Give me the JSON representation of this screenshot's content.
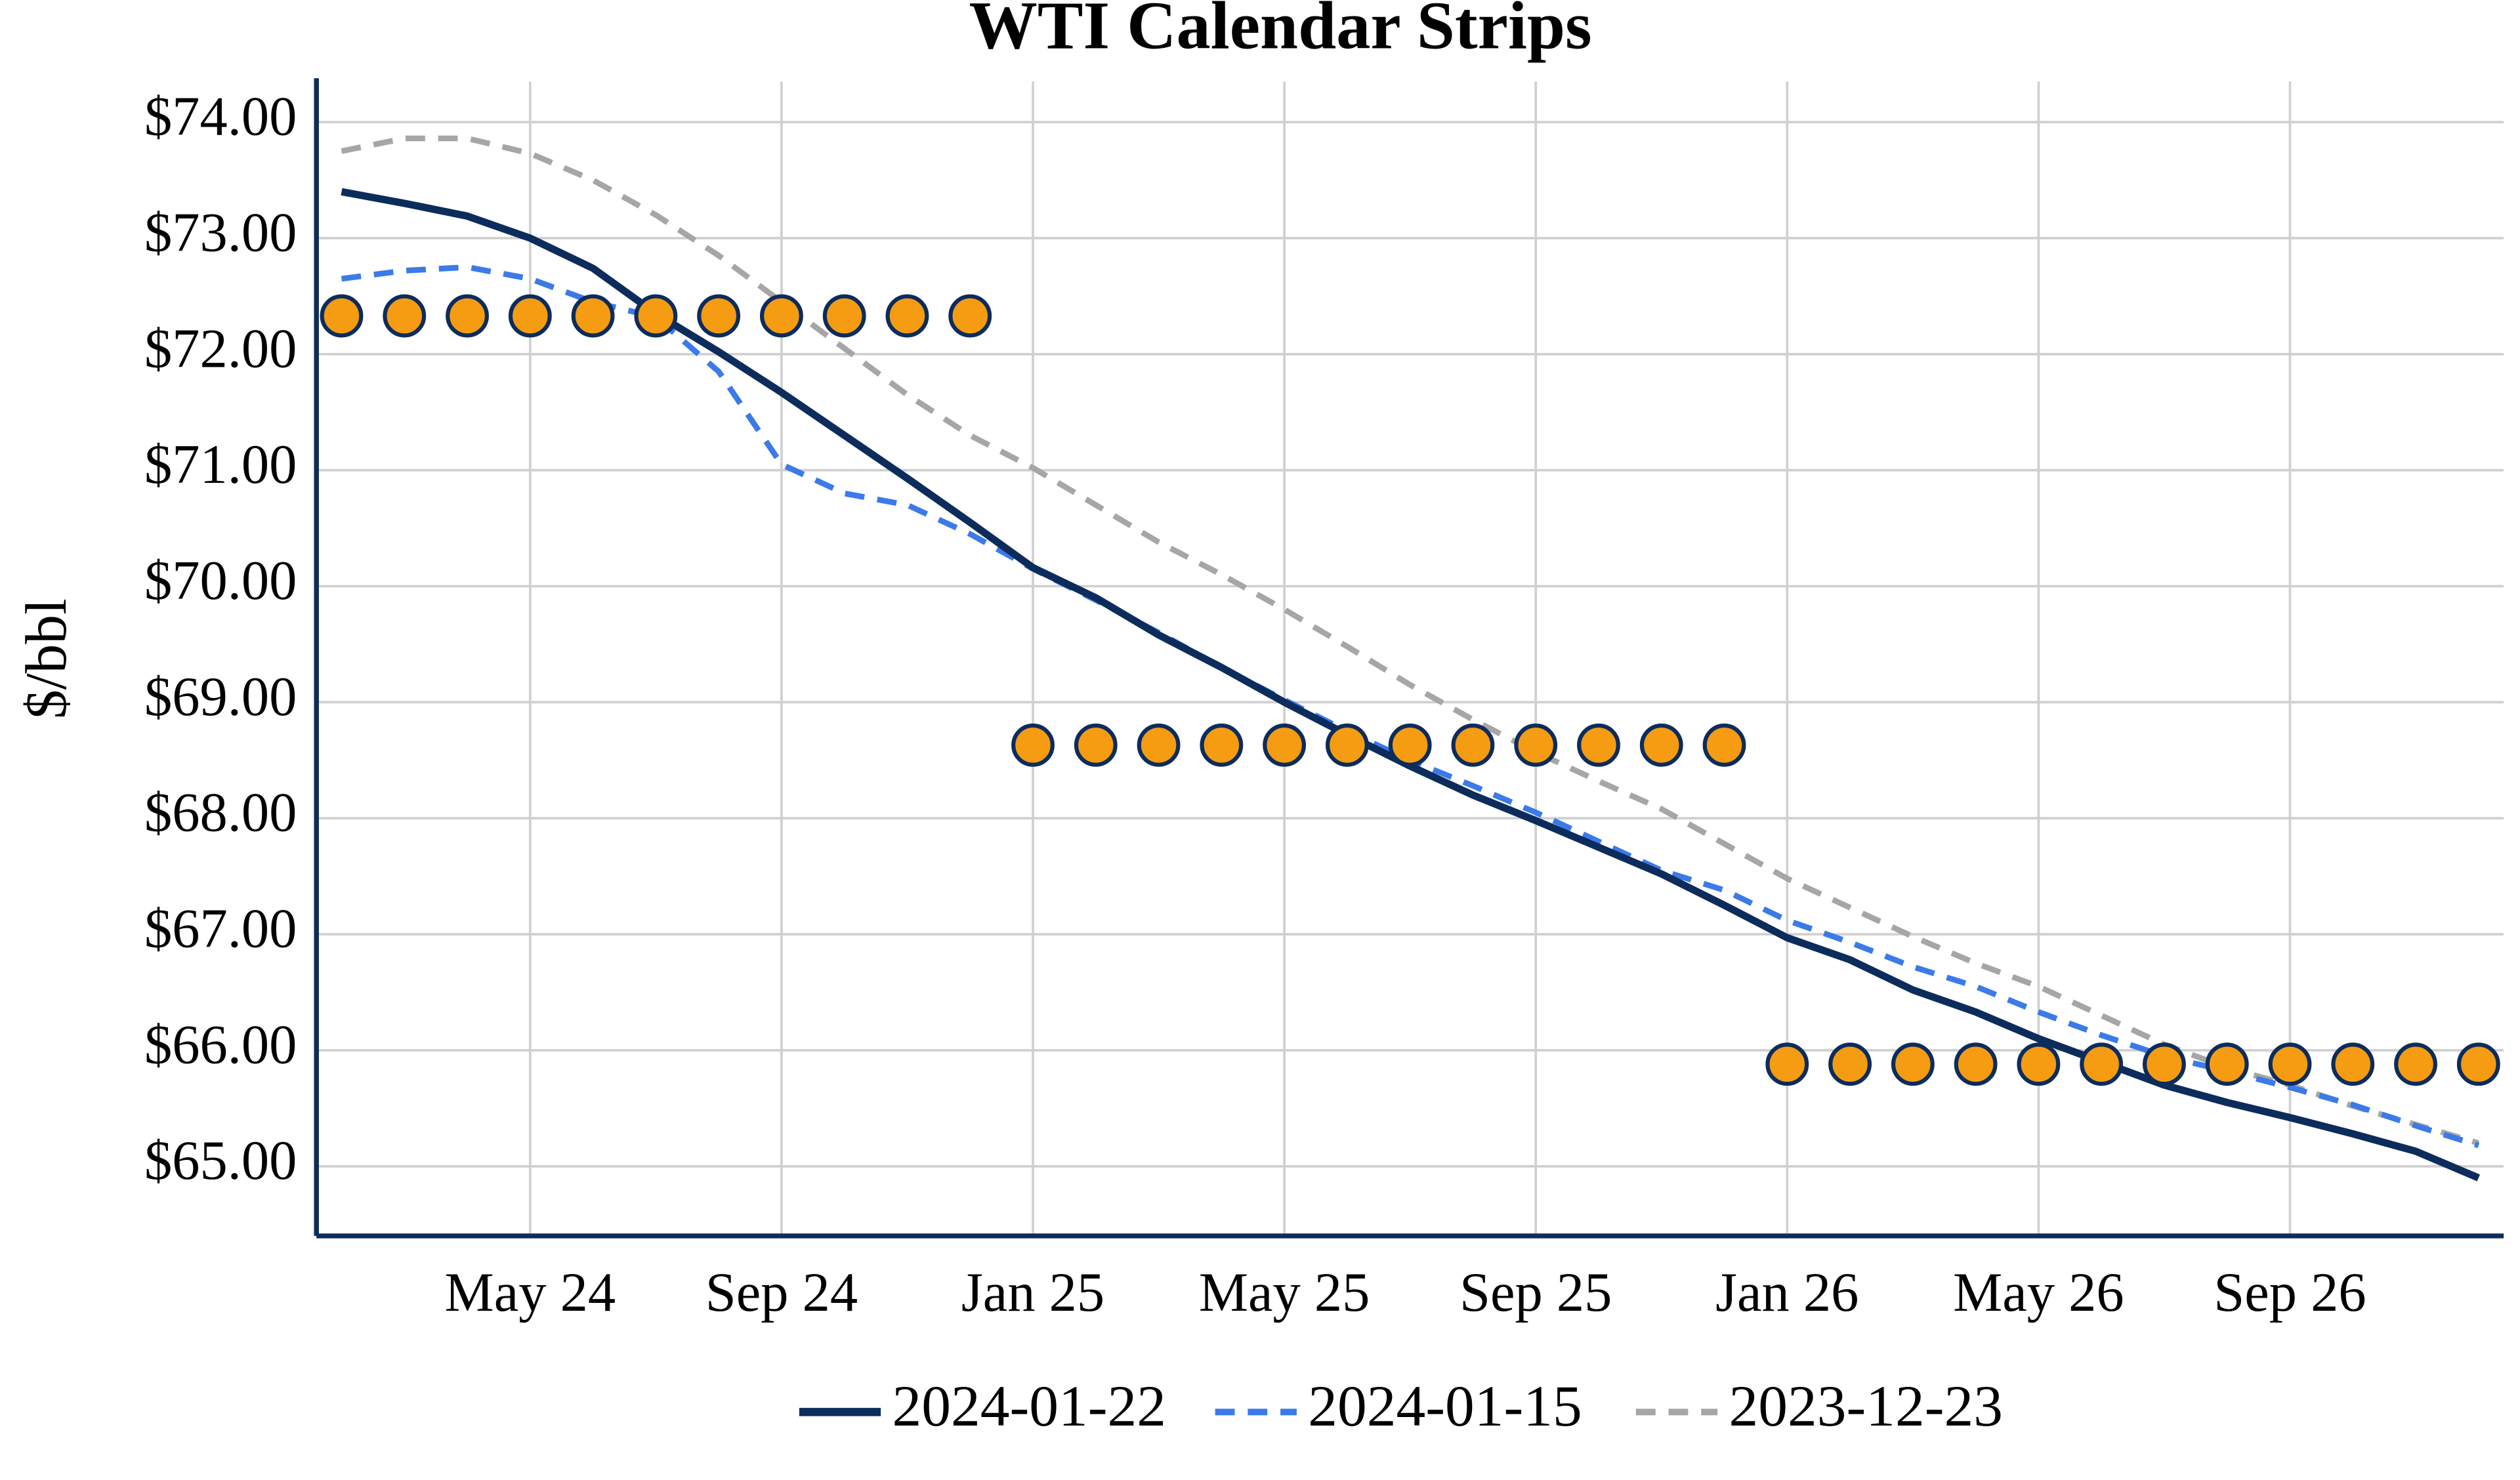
{
  "chart_data": {
    "type": "line",
    "title": "WTI Calendar Strips",
    "y_label": "$/bbl",
    "x": [
      "2024-02",
      "2024-03",
      "2024-04",
      "2024-05",
      "2024-06",
      "2024-07",
      "2024-08",
      "2024-09",
      "2024-10",
      "2024-11",
      "2024-12",
      "2025-01",
      "2025-02",
      "2025-03",
      "2025-04",
      "2025-05",
      "2025-06",
      "2025-07",
      "2025-08",
      "2025-09",
      "2025-10",
      "2025-11",
      "2025-12",
      "2026-01",
      "2026-02",
      "2026-03",
      "2026-04",
      "2026-05",
      "2026-06",
      "2026-07",
      "2026-08",
      "2026-09",
      "2026-10",
      "2026-11",
      "2026-12"
    ],
    "xlim": [
      "2024-02",
      "2026-12"
    ],
    "xticks": [
      {
        "value": "2024-05",
        "label": "May 24"
      },
      {
        "value": "2024-09",
        "label": "Sep 24"
      },
      {
        "value": "2025-01",
        "label": "Jan 25"
      },
      {
        "value": "2025-05",
        "label": "May 25"
      },
      {
        "value": "2025-09",
        "label": "Sep 25"
      },
      {
        "value": "2026-01",
        "label": "Jan 26"
      },
      {
        "value": "2026-05",
        "label": "May 26"
      },
      {
        "value": "2026-09",
        "label": "Sep 26"
      }
    ],
    "ylim": [
      64.4,
      74.35
    ],
    "yticks": [
      {
        "value": 65,
        "label": "$65.00"
      },
      {
        "value": 66,
        "label": "$66.00"
      },
      {
        "value": 67,
        "label": "$67.00"
      },
      {
        "value": 68,
        "label": "$68.00"
      },
      {
        "value": 69,
        "label": "$69.00"
      },
      {
        "value": 70,
        "label": "$70.00"
      },
      {
        "value": 71,
        "label": "$71.00"
      },
      {
        "value": 72,
        "label": "$72.00"
      },
      {
        "value": 73,
        "label": "$73.00"
      },
      {
        "value": 74,
        "label": "$74.00"
      }
    ],
    "grid": true,
    "legend": "bottom",
    "series": [
      {
        "name": "2024-01-22",
        "color": "#0c2c5c",
        "dash": "solid",
        "values": [
          73.4,
          73.3,
          73.19,
          73.0,
          72.74,
          72.35,
          72.02,
          71.67,
          71.3,
          70.93,
          70.55,
          70.16,
          69.9,
          69.58,
          69.3,
          69.0,
          68.72,
          68.45,
          68.2,
          67.98,
          67.75,
          67.52,
          67.25,
          66.97,
          66.78,
          66.52,
          66.33,
          66.1,
          65.9,
          65.7,
          65.55,
          65.42,
          65.28,
          65.13,
          64.9
        ]
      },
      {
        "name": "2024-01-15",
        "color": "#3b7ae8",
        "dash": "dashed",
        "values": [
          72.65,
          72.72,
          72.75,
          72.65,
          72.45,
          72.32,
          71.85,
          71.05,
          70.8,
          70.7,
          70.45,
          70.15,
          69.88,
          69.6,
          69.3,
          69.02,
          68.75,
          68.5,
          68.28,
          68.05,
          67.8,
          67.55,
          67.38,
          67.12,
          66.93,
          66.72,
          66.55,
          66.33,
          66.13,
          65.95,
          65.82,
          65.68,
          65.53,
          65.35,
          65.18
        ]
      },
      {
        "name": "2023-12-23",
        "color": "#a6a6a6",
        "dash": "dashed",
        "values": [
          73.75,
          73.86,
          73.86,
          73.73,
          73.5,
          73.2,
          72.85,
          72.45,
          72.05,
          71.65,
          71.3,
          71.02,
          70.7,
          70.38,
          70.1,
          69.8,
          69.48,
          69.15,
          68.85,
          68.57,
          68.32,
          68.08,
          67.78,
          67.48,
          67.23,
          66.98,
          66.75,
          66.55,
          66.3,
          66.05,
          65.85,
          65.7,
          65.52,
          65.36,
          65.2
        ]
      }
    ],
    "strip_averages": {
      "color": "#f59c12",
      "edge_color": "#0c2c5c",
      "values": [
        72.33,
        72.33,
        72.33,
        72.33,
        72.33,
        72.33,
        72.33,
        72.33,
        72.33,
        72.33,
        72.33,
        68.63,
        68.63,
        68.63,
        68.63,
        68.63,
        68.63,
        68.63,
        68.63,
        68.63,
        68.63,
        68.63,
        68.63,
        65.88,
        65.88,
        65.88,
        65.88,
        65.88,
        65.88,
        65.88,
        65.88,
        65.88,
        65.88,
        65.88,
        65.88
      ]
    }
  }
}
